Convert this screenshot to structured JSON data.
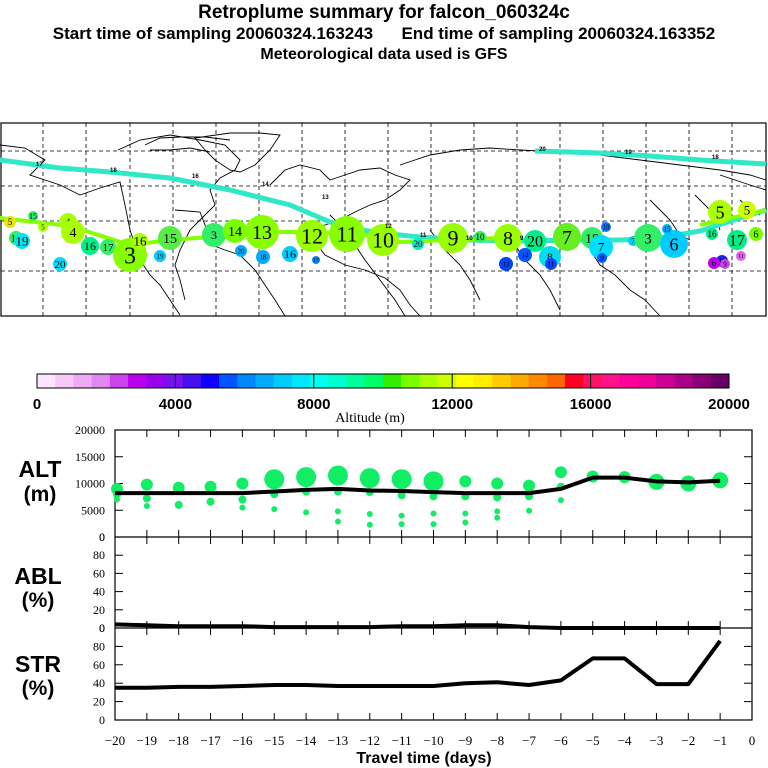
{
  "header": {
    "title": "Retroplume summary for falcon_060324c",
    "sampling_line": "Start time of sampling 20060324.163243      End time of sampling 20060324.163352",
    "start_label": "Start time of sampling",
    "start_time": "20060324.163243",
    "end_label": "End time of sampling",
    "end_time": "20060324.163352",
    "met_line": "Meteorological data used is GFS"
  },
  "colorbar": {
    "label": "Altitude (m)",
    "ticks": [
      "0",
      "4000",
      "8000",
      "12000",
      "16000",
      "20000"
    ],
    "range": [
      0,
      20000
    ],
    "colors": [
      "#ffe4ff",
      "#f8c8f8",
      "#eeaaf5",
      "#e088f0",
      "#cc44ee",
      "#bb00ee",
      "#9900ee",
      "#7711ee",
      "#4411ee",
      "#1100ff",
      "#0055ff",
      "#0088ff",
      "#00aaff",
      "#00ccff",
      "#00e6ff",
      "#00ffee",
      "#00ffcc",
      "#00ff99",
      "#00ff66",
      "#33ee00",
      "#77ff00",
      "#aaff00",
      "#ccff00",
      "#ffff00",
      "#ffee00",
      "#ffcc00",
      "#ffaa00",
      "#ff8800",
      "#ff6600",
      "#ff0022",
      "#ff1166",
      "#ff1188",
      "#ff0099",
      "#ee0099",
      "#cc0099",
      "#aa0088",
      "#880077",
      "#660066"
    ]
  },
  "map": {
    "description": "Retroplume cluster positions over world map (lat/lon grid)",
    "trajectory_labels_upper": [
      "17",
      "18",
      "16",
      "14",
      "13",
      "12",
      "11",
      "10",
      "9"
    ],
    "cluster_labels": [
      "1",
      "2",
      "3",
      "4",
      "5",
      "6",
      "7",
      "8",
      "9",
      "10",
      "11",
      "12",
      "13",
      "14",
      "15",
      "16",
      "17",
      "18",
      "19",
      "20"
    ]
  },
  "chart_data": [
    {
      "type": "line",
      "panel": "ALT",
      "ylabel": "ALT\n(m)",
      "ylabel_line1": "ALT",
      "ylabel_line2": "(m)",
      "ylim": [
        0,
        20000
      ],
      "yticks": [
        "20000",
        "15000",
        "10000",
        "5000",
        "0"
      ],
      "x": [
        -20,
        -19,
        -18,
        -17,
        -16,
        -15,
        -14,
        -13,
        -12,
        -11,
        -10,
        -9,
        -8,
        -7,
        -6,
        -5,
        -4,
        -3,
        -2,
        -1
      ],
      "series": [
        {
          "name": "mean altitude",
          "values": [
            8200,
            8200,
            8200,
            8200,
            8200,
            8500,
            8800,
            9000,
            8700,
            8600,
            8400,
            8200,
            8200,
            8200,
            9000,
            11100,
            11100,
            10400,
            10200,
            10500
          ]
        }
      ],
      "clusters": [
        {
          "day": -20,
          "alt": [
            9000,
            8000,
            7000
          ]
        },
        {
          "day": -19,
          "alt": [
            9800,
            7200,
            5800
          ]
        },
        {
          "day": -18,
          "alt": [
            9200,
            6000
          ]
        },
        {
          "day": -17,
          "alt": [
            9400,
            6600
          ]
        },
        {
          "day": -16,
          "alt": [
            10000,
            7000,
            5500
          ]
        },
        {
          "day": -15,
          "alt": [
            10800,
            8000,
            5200
          ]
        },
        {
          "day": -14,
          "alt": [
            11200,
            8500,
            4600
          ]
        },
        {
          "day": -13,
          "alt": [
            11500,
            8500,
            4800,
            2900
          ]
        },
        {
          "day": -12,
          "alt": [
            11000,
            8400,
            4300,
            2300
          ]
        },
        {
          "day": -11,
          "alt": [
            10800,
            7800,
            4000,
            2400
          ]
        },
        {
          "day": -10,
          "alt": [
            10400,
            7600,
            4400,
            2400
          ]
        },
        {
          "day": -9,
          "alt": [
            10400,
            7600,
            4400,
            2700
          ]
        },
        {
          "day": -8,
          "alt": [
            10000,
            7400,
            4800,
            3600
          ]
        },
        {
          "day": -7,
          "alt": [
            9600,
            7600,
            4900
          ]
        },
        {
          "day": -6,
          "alt": [
            12100,
            9400,
            6900
          ]
        },
        {
          "day": -5,
          "alt": [
            11300
          ]
        },
        {
          "day": -4,
          "alt": [
            11200
          ]
        },
        {
          "day": -3,
          "alt": [
            10300
          ]
        },
        {
          "day": -2,
          "alt": [
            10000
          ]
        },
        {
          "day": -1,
          "alt": [
            10600
          ]
        }
      ]
    },
    {
      "type": "line",
      "panel": "ABL",
      "ylabel_line1": "ABL",
      "ylabel_line2": "(%)",
      "ylim": [
        0,
        100
      ],
      "yticks": [
        "80",
        "60",
        "40",
        "20",
        "0"
      ],
      "top_tick": "0",
      "x": [
        -20,
        -19,
        -18,
        -17,
        -16,
        -15,
        -14,
        -13,
        -12,
        -11,
        -10,
        -9,
        -8,
        -7,
        -6,
        -5,
        -4,
        -3,
        -2,
        -1
      ],
      "series": [
        {
          "name": "ABL fraction",
          "values": [
            4,
            3,
            2,
            2,
            2,
            1,
            1,
            1,
            1,
            2,
            2,
            3,
            3,
            1,
            0,
            0,
            0,
            0,
            0,
            0
          ]
        }
      ]
    },
    {
      "type": "line",
      "panel": "STR",
      "ylabel_line1": "STR",
      "ylabel_line2": "(%)",
      "ylim": [
        0,
        100
      ],
      "yticks": [
        "80",
        "60",
        "40",
        "20",
        "0"
      ],
      "top_tick": "0",
      "xlabel": "Travel time (days)",
      "xticks": [
        "-20",
        "-19",
        "-18",
        "-17",
        "-16",
        "-15",
        "-14",
        "-13",
        "-12",
        "-11",
        "-10",
        "-9",
        "-8",
        "-7",
        "-6",
        "-5",
        "-4",
        "-3",
        "-2",
        "-1",
        "0"
      ],
      "xlim": [
        -20,
        0
      ],
      "x": [
        -20,
        -19,
        -18,
        -17,
        -16,
        -15,
        -14,
        -13,
        -12,
        -11,
        -10,
        -9,
        -8,
        -7,
        -6,
        -5,
        -4,
        -3,
        -2,
        -1
      ],
      "series": [
        {
          "name": "stratospheric fraction",
          "values": [
            35,
            35,
            36,
            36,
            37,
            38,
            38,
            37,
            37,
            37,
            37,
            40,
            41,
            38,
            43,
            67,
            67,
            39,
            39,
            86
          ]
        }
      ]
    }
  ]
}
